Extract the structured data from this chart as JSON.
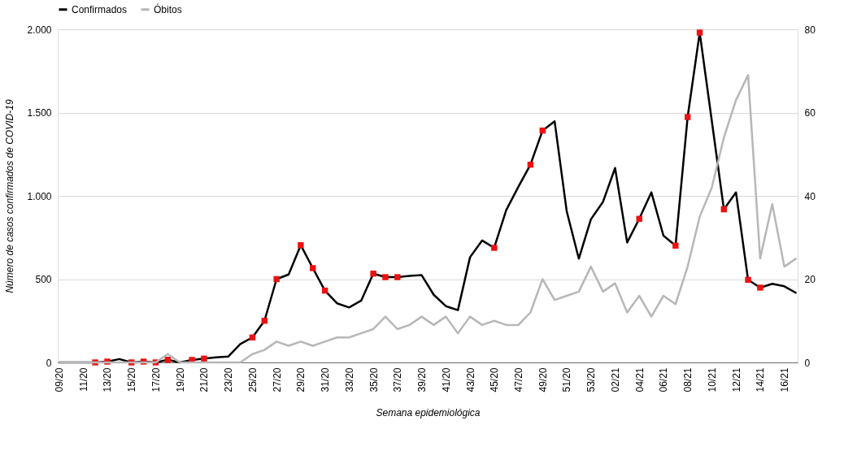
{
  "chart_data": {
    "type": "line",
    "xlabel": "Semana epidemiológica",
    "ylabel": "Número de casos confirmados de COVID-19",
    "categories": [
      "09/20",
      null,
      "11/20",
      null,
      "13/20",
      null,
      "15/20",
      null,
      "17/20",
      null,
      "19/20",
      null,
      "21/20",
      null,
      "23/20",
      null,
      "25/20",
      null,
      "27/20",
      null,
      "29/20",
      null,
      "31/20",
      null,
      "33/20",
      null,
      "35/20",
      null,
      "37/20",
      null,
      "39/20",
      null,
      "41/20",
      null,
      "43/20",
      null,
      "45/20",
      null,
      "47/20",
      null,
      "49/20",
      null,
      "51/20",
      null,
      "53/20",
      null,
      "02/21",
      null,
      "04/21",
      null,
      "06/21",
      null,
      "08/21",
      null,
      "10/21",
      null,
      "12/21",
      null,
      "14/21",
      null,
      "16/21",
      null
    ],
    "series": [
      {
        "name": "Confirmados",
        "color": "#000000",
        "values": [
          0,
          0,
          0,
          0,
          5,
          20,
          0,
          5,
          0,
          16,
          0,
          15,
          23,
          30,
          35,
          110,
          150,
          250,
          500,
          528,
          704,
          566,
          431,
          355,
          330,
          371,
          533,
          512,
          512,
          520,
          524,
          406,
          338,
          314,
          631,
          732,
          688,
          915,
          1054,
          1187,
          1392,
          1447,
          907,
          623,
          859,
          964,
          1167,
          720,
          862,
          1021,
          761,
          701,
          1473,
          1980,
          1450,
          919,
          1021,
          496,
          449,
          472,
          457,
          416
        ]
      },
      {
        "name": "Óbitos",
        "axis": "y2",
        "color": "#b7b7b7",
        "values": [
          0,
          0,
          0,
          0,
          0,
          0,
          0,
          0,
          0,
          2,
          0,
          0,
          0,
          0,
          0,
          0,
          2,
          3,
          5,
          4,
          5,
          4,
          5,
          6,
          6,
          7,
          8,
          11,
          8,
          9,
          11,
          9,
          11,
          7,
          11,
          9,
          10,
          9,
          9,
          12,
          20,
          15,
          16,
          17,
          23,
          17,
          19,
          12,
          16,
          11,
          16,
          14,
          23,
          35,
          42,
          54,
          63,
          69,
          25,
          38,
          23,
          25
        ]
      },
      {
        "type": "scatter",
        "color": "#ee1111",
        "marker": "square",
        "values": [
          null,
          null,
          null,
          0,
          5,
          null,
          0,
          5,
          0,
          16,
          null,
          15,
          23,
          null,
          null,
          null,
          150,
          250,
          500,
          null,
          704,
          566,
          431,
          null,
          null,
          null,
          533,
          512,
          512,
          null,
          null,
          null,
          null,
          null,
          null,
          null,
          688,
          null,
          null,
          1187,
          1392,
          null,
          null,
          null,
          null,
          null,
          null,
          null,
          862,
          null,
          null,
          701,
          1473,
          1980,
          null,
          919,
          null,
          496,
          449,
          null,
          null,
          null
        ]
      }
    ],
    "ylim": [
      0,
      2000
    ],
    "yticks": [
      0,
      500,
      {
        "value": 1000,
        "label": "1.000"
      },
      {
        "value": 1500,
        "label": "1.500"
      },
      {
        "value": 2000,
        "label": "2.000"
      }
    ],
    "y2lim": [
      0,
      80
    ],
    "y2ticks": [
      0,
      20,
      40,
      60,
      80
    ],
    "grid": "y",
    "legend": "top"
  }
}
